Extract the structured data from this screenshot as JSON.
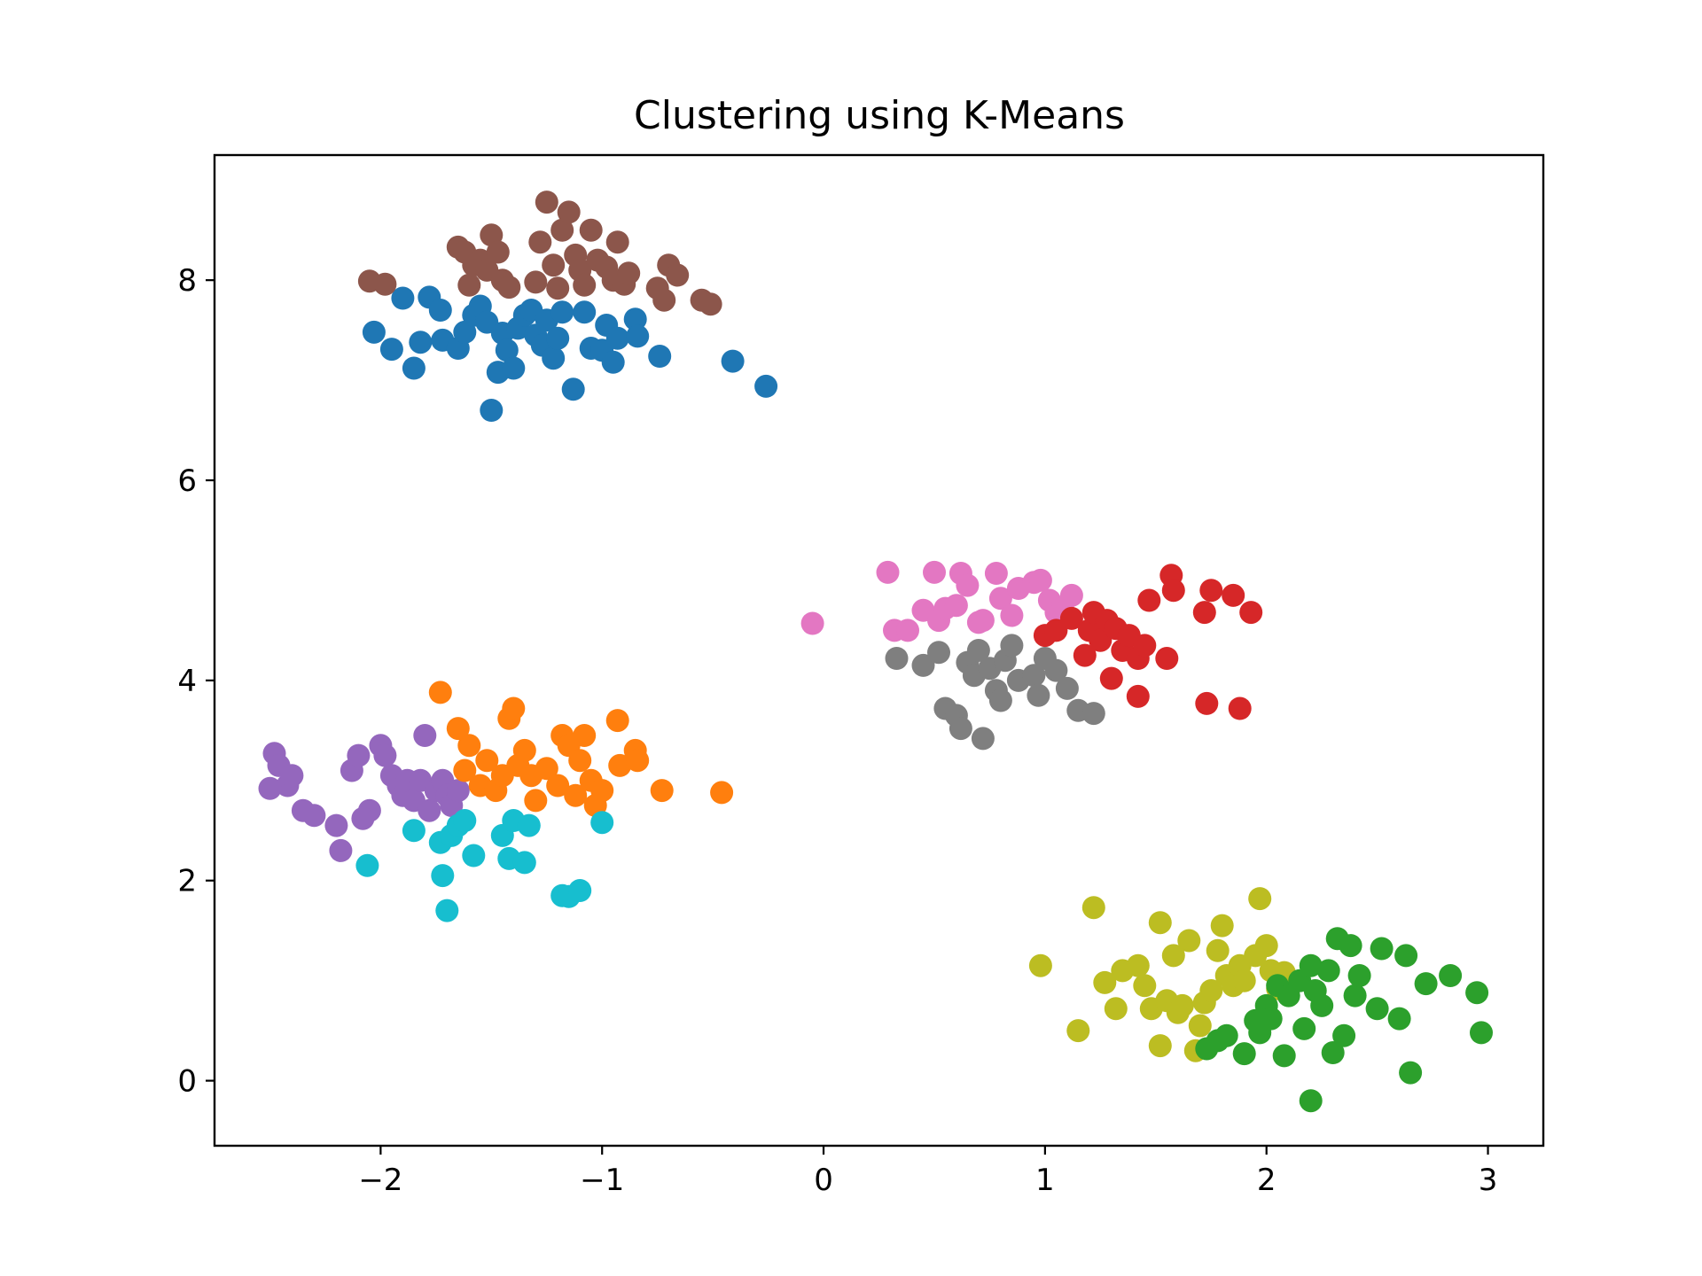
{
  "chart_data": {
    "type": "scatter",
    "title": "Clustering using K-Means",
    "xlabel": "",
    "ylabel": "",
    "xlim": [
      -2.75,
      3.25
    ],
    "ylim": [
      -0.65,
      9.25
    ],
    "xticks": [
      -2,
      -1,
      0,
      1,
      2,
      3
    ],
    "xtick_labels": [
      "−2",
      "−1",
      "0",
      "1",
      "2",
      "3"
    ],
    "yticks": [
      0,
      2,
      4,
      6,
      8
    ],
    "ytick_labels": [
      "0",
      "2",
      "4",
      "6",
      "8"
    ],
    "grid": false,
    "legend": "none",
    "series": [
      {
        "color": "#1f77b4",
        "points": [
          [
            -2.03,
            7.48
          ],
          [
            -1.95,
            7.31
          ],
          [
            -1.9,
            7.82
          ],
          [
            -1.85,
            7.12
          ],
          [
            -1.82,
            7.38
          ],
          [
            -1.78,
            7.83
          ],
          [
            -1.73,
            7.7
          ],
          [
            -1.72,
            7.4
          ],
          [
            -1.65,
            7.32
          ],
          [
            -1.62,
            7.48
          ],
          [
            -1.58,
            7.65
          ],
          [
            -1.55,
            7.74
          ],
          [
            -1.52,
            7.58
          ],
          [
            -1.5,
            6.7
          ],
          [
            -1.47,
            7.08
          ],
          [
            -1.45,
            7.47
          ],
          [
            -1.43,
            7.3
          ],
          [
            -1.4,
            7.12
          ],
          [
            -1.38,
            7.52
          ],
          [
            -1.35,
            7.65
          ],
          [
            -1.32,
            7.7
          ],
          [
            -1.3,
            7.45
          ],
          [
            -1.27,
            7.35
          ],
          [
            -1.25,
            7.6
          ],
          [
            -1.22,
            7.22
          ],
          [
            -1.2,
            7.42
          ],
          [
            -1.18,
            7.68
          ],
          [
            -1.13,
            6.91
          ],
          [
            -1.08,
            7.68
          ],
          [
            -1.05,
            7.32
          ],
          [
            -1.0,
            7.3
          ],
          [
            -0.98,
            7.55
          ],
          [
            -0.95,
            7.18
          ],
          [
            -0.93,
            7.42
          ],
          [
            -0.85,
            7.61
          ],
          [
            -0.84,
            7.44
          ],
          [
            -0.74,
            7.24
          ],
          [
            -0.41,
            7.19
          ],
          [
            -0.26,
            6.94
          ]
        ]
      },
      {
        "color": "#8c564b",
        "points": [
          [
            -2.05,
            7.99
          ],
          [
            -1.98,
            7.96
          ],
          [
            -1.65,
            8.33
          ],
          [
            -1.62,
            8.28
          ],
          [
            -1.6,
            7.95
          ],
          [
            -1.58,
            8.15
          ],
          [
            -1.55,
            8.2
          ],
          [
            -1.52,
            8.1
          ],
          [
            -1.5,
            8.45
          ],
          [
            -1.47,
            8.28
          ],
          [
            -1.45,
            8.0
          ],
          [
            -1.42,
            7.93
          ],
          [
            -1.3,
            7.98
          ],
          [
            -1.28,
            8.38
          ],
          [
            -1.25,
            8.78
          ],
          [
            -1.22,
            8.15
          ],
          [
            -1.2,
            7.92
          ],
          [
            -1.18,
            8.5
          ],
          [
            -1.15,
            8.68
          ],
          [
            -1.12,
            8.25
          ],
          [
            -1.1,
            8.1
          ],
          [
            -1.08,
            7.95
          ],
          [
            -1.05,
            8.5
          ],
          [
            -1.02,
            8.2
          ],
          [
            -0.98,
            8.13
          ],
          [
            -0.95,
            8.0
          ],
          [
            -0.93,
            8.38
          ],
          [
            -0.9,
            7.96
          ],
          [
            -0.88,
            8.07
          ],
          [
            -0.75,
            7.92
          ],
          [
            -0.72,
            7.8
          ],
          [
            -0.7,
            8.15
          ],
          [
            -0.66,
            8.05
          ],
          [
            -0.55,
            7.8
          ],
          [
            -0.51,
            7.76
          ]
        ]
      },
      {
        "color": "#e377c2",
        "points": [
          [
            -0.05,
            4.57
          ],
          [
            0.29,
            5.08
          ],
          [
            0.32,
            4.5
          ],
          [
            0.38,
            4.5
          ],
          [
            0.45,
            4.7
          ],
          [
            0.5,
            5.08
          ],
          [
            0.52,
            4.6
          ],
          [
            0.55,
            4.72
          ],
          [
            0.6,
            4.75
          ],
          [
            0.62,
            5.07
          ],
          [
            0.65,
            4.95
          ],
          [
            0.7,
            4.58
          ],
          [
            0.72,
            4.6
          ],
          [
            0.78,
            5.07
          ],
          [
            0.8,
            4.82
          ],
          [
            0.85,
            4.65
          ],
          [
            0.88,
            4.92
          ],
          [
            0.95,
            4.98
          ],
          [
            0.98,
            5.0
          ],
          [
            1.02,
            4.8
          ],
          [
            1.05,
            4.68
          ],
          [
            1.08,
            4.72
          ],
          [
            1.12,
            4.85
          ]
        ]
      },
      {
        "color": "#d62728",
        "points": [
          [
            1.0,
            4.45
          ],
          [
            1.05,
            4.5
          ],
          [
            1.12,
            4.62
          ],
          [
            1.18,
            4.25
          ],
          [
            1.2,
            4.5
          ],
          [
            1.22,
            4.68
          ],
          [
            1.25,
            4.4
          ],
          [
            1.28,
            4.6
          ],
          [
            1.3,
            4.02
          ],
          [
            1.32,
            4.52
          ],
          [
            1.35,
            4.3
          ],
          [
            1.38,
            4.45
          ],
          [
            1.42,
            4.22
          ],
          [
            1.42,
            3.84
          ],
          [
            1.45,
            4.35
          ],
          [
            1.47,
            4.8
          ],
          [
            1.55,
            4.22
          ],
          [
            1.57,
            5.05
          ],
          [
            1.58,
            4.9
          ],
          [
            1.72,
            4.68
          ],
          [
            1.73,
            3.77
          ],
          [
            1.75,
            4.9
          ],
          [
            1.85,
            4.85
          ],
          [
            1.88,
            3.72
          ],
          [
            1.93,
            4.68
          ]
        ]
      },
      {
        "color": "#7f7f7f",
        "points": [
          [
            0.33,
            4.22
          ],
          [
            0.45,
            4.15
          ],
          [
            0.52,
            4.28
          ],
          [
            0.55,
            3.72
          ],
          [
            0.6,
            3.65
          ],
          [
            0.62,
            3.52
          ],
          [
            0.65,
            4.18
          ],
          [
            0.68,
            4.05
          ],
          [
            0.7,
            4.3
          ],
          [
            0.72,
            3.42
          ],
          [
            0.75,
            4.12
          ],
          [
            0.78,
            3.9
          ],
          [
            0.8,
            3.8
          ],
          [
            0.82,
            4.2
          ],
          [
            0.85,
            4.35
          ],
          [
            0.88,
            4.0
          ],
          [
            0.95,
            4.05
          ],
          [
            0.97,
            3.85
          ],
          [
            1.0,
            4.22
          ],
          [
            1.05,
            4.1
          ],
          [
            1.1,
            3.92
          ],
          [
            1.15,
            3.7
          ],
          [
            1.22,
            3.67
          ]
        ]
      },
      {
        "color": "#9467bd",
        "points": [
          [
            -2.48,
            3.27
          ],
          [
            -2.46,
            3.15
          ],
          [
            -2.42,
            2.95
          ],
          [
            -2.4,
            3.05
          ],
          [
            -2.35,
            2.7
          ],
          [
            -2.3,
            2.65
          ],
          [
            -2.2,
            2.55
          ],
          [
            -2.18,
            2.3
          ],
          [
            -2.13,
            3.1
          ],
          [
            -2.1,
            3.25
          ],
          [
            -2.05,
            2.7
          ],
          [
            -2.0,
            3.35
          ],
          [
            -1.98,
            3.25
          ],
          [
            -1.95,
            3.05
          ],
          [
            -1.92,
            2.95
          ],
          [
            -1.9,
            2.85
          ],
          [
            -1.88,
            3.0
          ],
          [
            -1.85,
            2.8
          ],
          [
            -1.82,
            3.0
          ],
          [
            -1.8,
            3.45
          ],
          [
            -1.78,
            2.7
          ],
          [
            -1.75,
            2.9
          ],
          [
            -1.72,
            3.0
          ],
          [
            -1.7,
            2.85
          ],
          [
            -1.68,
            2.75
          ],
          [
            -1.65,
            2.9
          ],
          [
            -2.5,
            2.92
          ],
          [
            -2.08,
            2.62
          ]
        ]
      },
      {
        "color": "#ff7f0e",
        "points": [
          [
            -1.73,
            3.88
          ],
          [
            -1.65,
            3.52
          ],
          [
            -1.62,
            3.1
          ],
          [
            -1.6,
            3.35
          ],
          [
            -1.55,
            2.95
          ],
          [
            -1.52,
            3.2
          ],
          [
            -1.48,
            2.9
          ],
          [
            -1.45,
            3.05
          ],
          [
            -1.42,
            3.62
          ],
          [
            -1.4,
            3.72
          ],
          [
            -1.38,
            3.15
          ],
          [
            -1.35,
            3.3
          ],
          [
            -1.32,
            3.05
          ],
          [
            -1.3,
            2.8
          ],
          [
            -1.25,
            3.12
          ],
          [
            -1.2,
            2.95
          ],
          [
            -1.18,
            3.45
          ],
          [
            -1.15,
            3.35
          ],
          [
            -1.12,
            2.85
          ],
          [
            -1.1,
            3.2
          ],
          [
            -1.08,
            3.45
          ],
          [
            -1.05,
            3.0
          ],
          [
            -1.03,
            2.75
          ],
          [
            -1.0,
            2.9
          ],
          [
            -0.93,
            3.6
          ],
          [
            -0.92,
            3.15
          ],
          [
            -0.85,
            3.3
          ],
          [
            -0.84,
            3.2
          ],
          [
            -0.73,
            2.9
          ],
          [
            -0.46,
            2.88
          ]
        ]
      },
      {
        "color": "#17becf",
        "points": [
          [
            -2.06,
            2.15
          ],
          [
            -1.85,
            2.5
          ],
          [
            -1.73,
            2.38
          ],
          [
            -1.72,
            2.05
          ],
          [
            -1.7,
            1.7
          ],
          [
            -1.68,
            2.45
          ],
          [
            -1.65,
            2.55
          ],
          [
            -1.62,
            2.6
          ],
          [
            -1.58,
            2.25
          ],
          [
            -1.45,
            2.45
          ],
          [
            -1.42,
            2.22
          ],
          [
            -1.4,
            2.6
          ],
          [
            -1.35,
            2.18
          ],
          [
            -1.33,
            2.55
          ],
          [
            -1.18,
            1.85
          ],
          [
            -1.15,
            1.84
          ],
          [
            -1.1,
            1.9
          ],
          [
            -1.0,
            2.58
          ]
        ]
      },
      {
        "color": "#bcbd22",
        "points": [
          [
            0.98,
            1.15
          ],
          [
            1.15,
            0.5
          ],
          [
            1.22,
            1.73
          ],
          [
            1.27,
            0.98
          ],
          [
            1.32,
            0.72
          ],
          [
            1.35,
            1.1
          ],
          [
            1.42,
            1.15
          ],
          [
            1.45,
            0.95
          ],
          [
            1.48,
            0.72
          ],
          [
            1.52,
            0.35
          ],
          [
            1.52,
            1.58
          ],
          [
            1.55,
            0.8
          ],
          [
            1.58,
            1.25
          ],
          [
            1.6,
            0.68
          ],
          [
            1.62,
            0.75
          ],
          [
            1.65,
            1.4
          ],
          [
            1.68,
            0.3
          ],
          [
            1.7,
            0.55
          ],
          [
            1.72,
            0.78
          ],
          [
            1.75,
            0.9
          ],
          [
            1.78,
            1.3
          ],
          [
            1.8,
            1.55
          ],
          [
            1.82,
            1.05
          ],
          [
            1.85,
            0.95
          ],
          [
            1.88,
            1.15
          ],
          [
            1.9,
            1.0
          ],
          [
            1.95,
            1.25
          ],
          [
            1.97,
            1.82
          ],
          [
            2.0,
            1.35
          ],
          [
            2.02,
            1.1
          ],
          [
            2.05,
            0.92
          ],
          [
            2.08,
            1.08
          ]
        ]
      },
      {
        "color": "#2ca02c",
        "points": [
          [
            1.73,
            0.32
          ],
          [
            1.78,
            0.4
          ],
          [
            1.82,
            0.45
          ],
          [
            1.9,
            0.27
          ],
          [
            1.95,
            0.6
          ],
          [
            1.97,
            0.48
          ],
          [
            2.0,
            0.75
          ],
          [
            2.02,
            0.62
          ],
          [
            2.05,
            0.95
          ],
          [
            2.08,
            0.25
          ],
          [
            2.1,
            0.85
          ],
          [
            2.15,
            1.0
          ],
          [
            2.17,
            0.52
          ],
          [
            2.2,
            1.15
          ],
          [
            2.22,
            0.9
          ],
          [
            2.25,
            0.75
          ],
          [
            2.28,
            1.1
          ],
          [
            2.3,
            0.28
          ],
          [
            2.32,
            1.42
          ],
          [
            2.35,
            0.45
          ],
          [
            2.38,
            1.35
          ],
          [
            2.4,
            0.85
          ],
          [
            2.42,
            1.05
          ],
          [
            2.5,
            0.72
          ],
          [
            2.52,
            1.32
          ],
          [
            2.6,
            0.62
          ],
          [
            2.63,
            1.25
          ],
          [
            2.65,
            0.08
          ],
          [
            2.72,
            0.97
          ],
          [
            2.83,
            1.05
          ],
          [
            2.95,
            0.88
          ],
          [
            2.97,
            0.48
          ],
          [
            2.2,
            -0.2
          ]
        ]
      }
    ]
  }
}
